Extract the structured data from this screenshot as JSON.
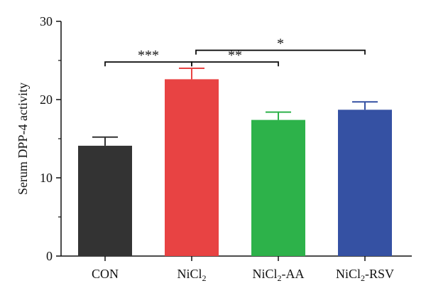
{
  "chart_data": {
    "type": "bar",
    "title": "",
    "xlabel": "",
    "ylabel": "Serum DPP-4 activity",
    "ylim": [
      0,
      30
    ],
    "yticks": [
      0,
      10,
      20,
      30
    ],
    "grid": false,
    "categories": [
      {
        "base": "CON",
        "sub": "",
        "suffix": ""
      },
      {
        "base": "NiCl",
        "sub": "2",
        "suffix": ""
      },
      {
        "base": "NiCl",
        "sub": "2",
        "suffix": "-AA"
      },
      {
        "base": "NiCl",
        "sub": "2",
        "suffix": "-RSV"
      }
    ],
    "values": [
      14.1,
      22.6,
      17.4,
      18.7
    ],
    "errors": [
      1.1,
      1.4,
      1.0,
      1.0
    ],
    "colors": [
      "#333333",
      "#e84343",
      "#2db24a",
      "#3551a3"
    ],
    "significance": [
      {
        "from": 0,
        "to": 1,
        "label": "***",
        "y": 24.8
      },
      {
        "from": 1,
        "to": 2,
        "label": "**",
        "y": 24.8
      },
      {
        "from": 1,
        "to": 3,
        "label": "*",
        "y": 26.3
      }
    ]
  }
}
